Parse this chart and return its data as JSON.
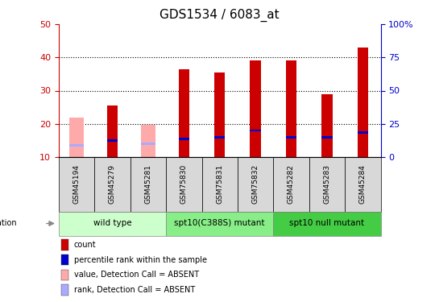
{
  "title": "GDS1534 / 6083_at",
  "samples": [
    "GSM45194",
    "GSM45279",
    "GSM45281",
    "GSM75830",
    "GSM75831",
    "GSM75832",
    "GSM45282",
    "GSM45283",
    "GSM45284"
  ],
  "count_values": [
    null,
    25.5,
    null,
    36.5,
    35.5,
    39.0,
    39.0,
    29.0,
    43.0
  ],
  "absent_values": [
    22.0,
    null,
    19.8,
    null,
    null,
    null,
    null,
    null,
    null
  ],
  "percentile_present": [
    null,
    15.0,
    null,
    15.5,
    16.0,
    18.0,
    16.0,
    16.0,
    17.5
  ],
  "percentile_absent": [
    13.5,
    null,
    14.0,
    null,
    null,
    null,
    null,
    null,
    null
  ],
  "groups": [
    {
      "label": "wild type",
      "start": 0,
      "end": 3,
      "color": "#ccffcc"
    },
    {
      "label": "spt10(C388S) mutant",
      "start": 3,
      "end": 6,
      "color": "#88ee88"
    },
    {
      "label": "spt10 null mutant",
      "start": 6,
      "end": 9,
      "color": "#44cc44"
    }
  ],
  "ylim_left": [
    10,
    50
  ],
  "ylim_right": [
    0,
    100
  ],
  "yticks_left": [
    10,
    20,
    30,
    40,
    50
  ],
  "yticks_right": [
    0,
    25,
    50,
    75,
    100
  ],
  "left_color": "#cc0000",
  "right_color": "#0000cc",
  "bar_color": "#cc0000",
  "absent_bar_color": "#ffaaaa",
  "percentile_color": "#0000cc",
  "absent_rank_color": "#aaaaff",
  "legend_items": [
    {
      "label": "count",
      "color": "#cc0000"
    },
    {
      "label": "percentile rank within the sample",
      "color": "#0000cc"
    },
    {
      "label": "value, Detection Call = ABSENT",
      "color": "#ffaaaa"
    },
    {
      "label": "rank, Detection Call = ABSENT",
      "color": "#aaaaff"
    }
  ]
}
